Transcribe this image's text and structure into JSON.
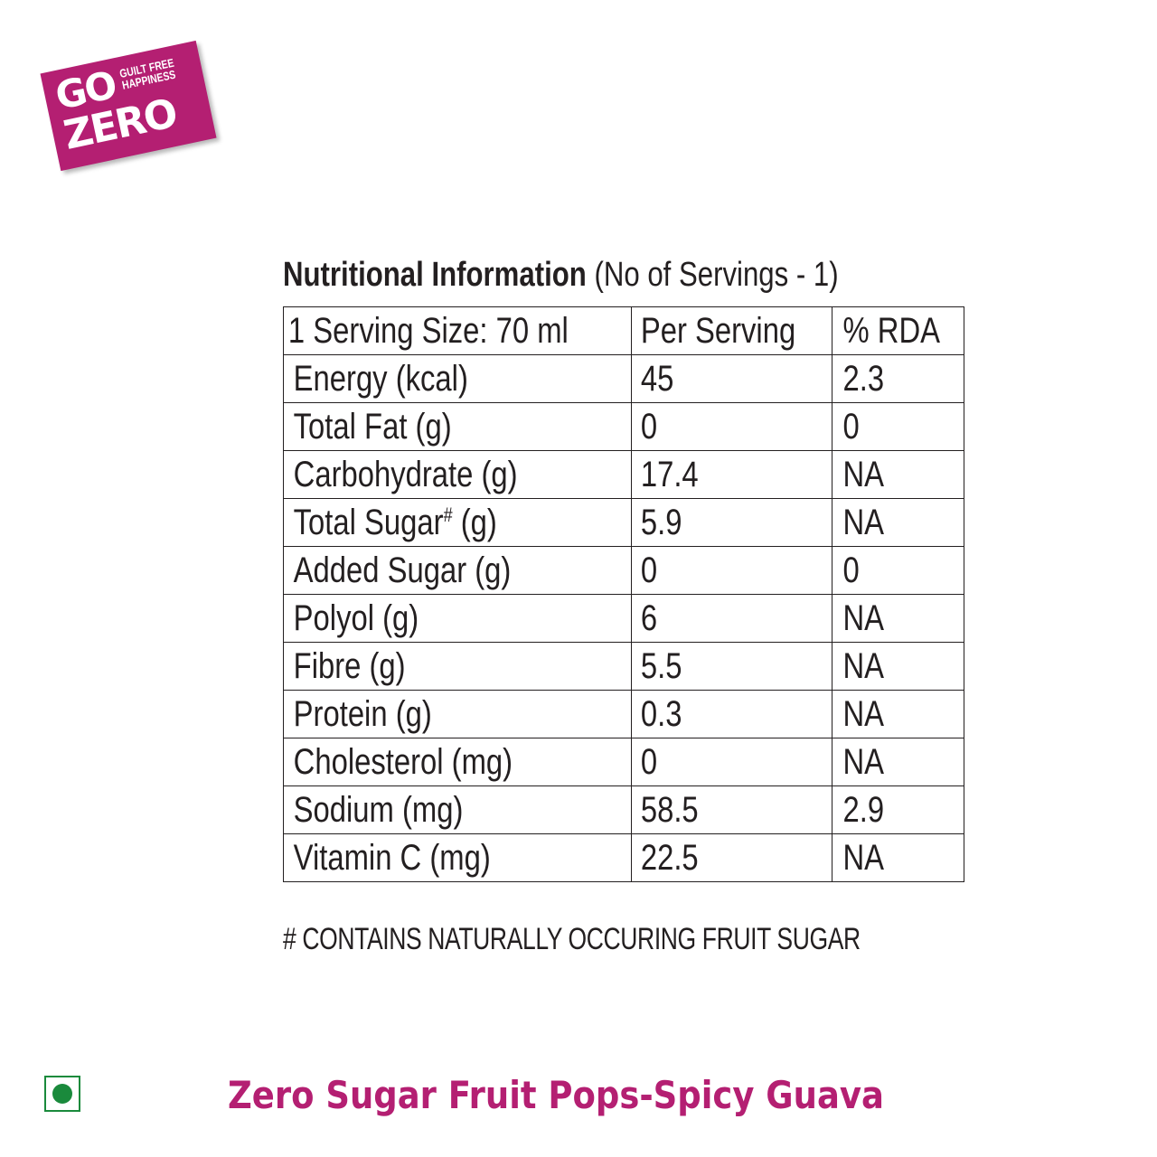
{
  "logo": {
    "go": "GO",
    "tagline_line1": "GUILT FREE",
    "tagline_line2": "HAPPINESS",
    "zero": "ZERO",
    "color": "#b41f72"
  },
  "heading": {
    "title": "Nutritional Information",
    "servings": "(No of Servings - 1)"
  },
  "table": {
    "header": [
      "1 Serving Size: 70 ml",
      "Per Serving",
      "% RDA"
    ],
    "rows": [
      [
        "Energy (kcal)",
        "45",
        "2.3"
      ],
      [
        "Total Fat (g)",
        "0",
        "0"
      ],
      [
        "Carbohydrate (g)",
        "17.4",
        "NA"
      ],
      [
        "Total Sugar",
        "5.9",
        "NA"
      ],
      [
        "Added Sugar (g)",
        "0",
        "0"
      ],
      [
        "Polyol (g)",
        "6",
        "NA"
      ],
      [
        "Fibre (g)",
        "5.5",
        "NA"
      ],
      [
        "Protein (g)",
        "0.3",
        "NA"
      ],
      [
        "Cholesterol (mg)",
        "0",
        "NA"
      ],
      [
        "Sodium (mg)",
        "58.5",
        "2.9"
      ],
      [
        "Vitamin C (mg)",
        "22.5",
        "NA"
      ]
    ],
    "total_sugar_mark": "#",
    "total_sugar_unit": " (g)"
  },
  "footnote": "# CONTAINS NATURALLY OCCURING FRUIT SUGAR",
  "veg_mark": {
    "icon": "veg-symbol-icon",
    "color": "#1a8a3c"
  },
  "product_name": "Zero Sugar Fruit Pops-Spicy Guava"
}
